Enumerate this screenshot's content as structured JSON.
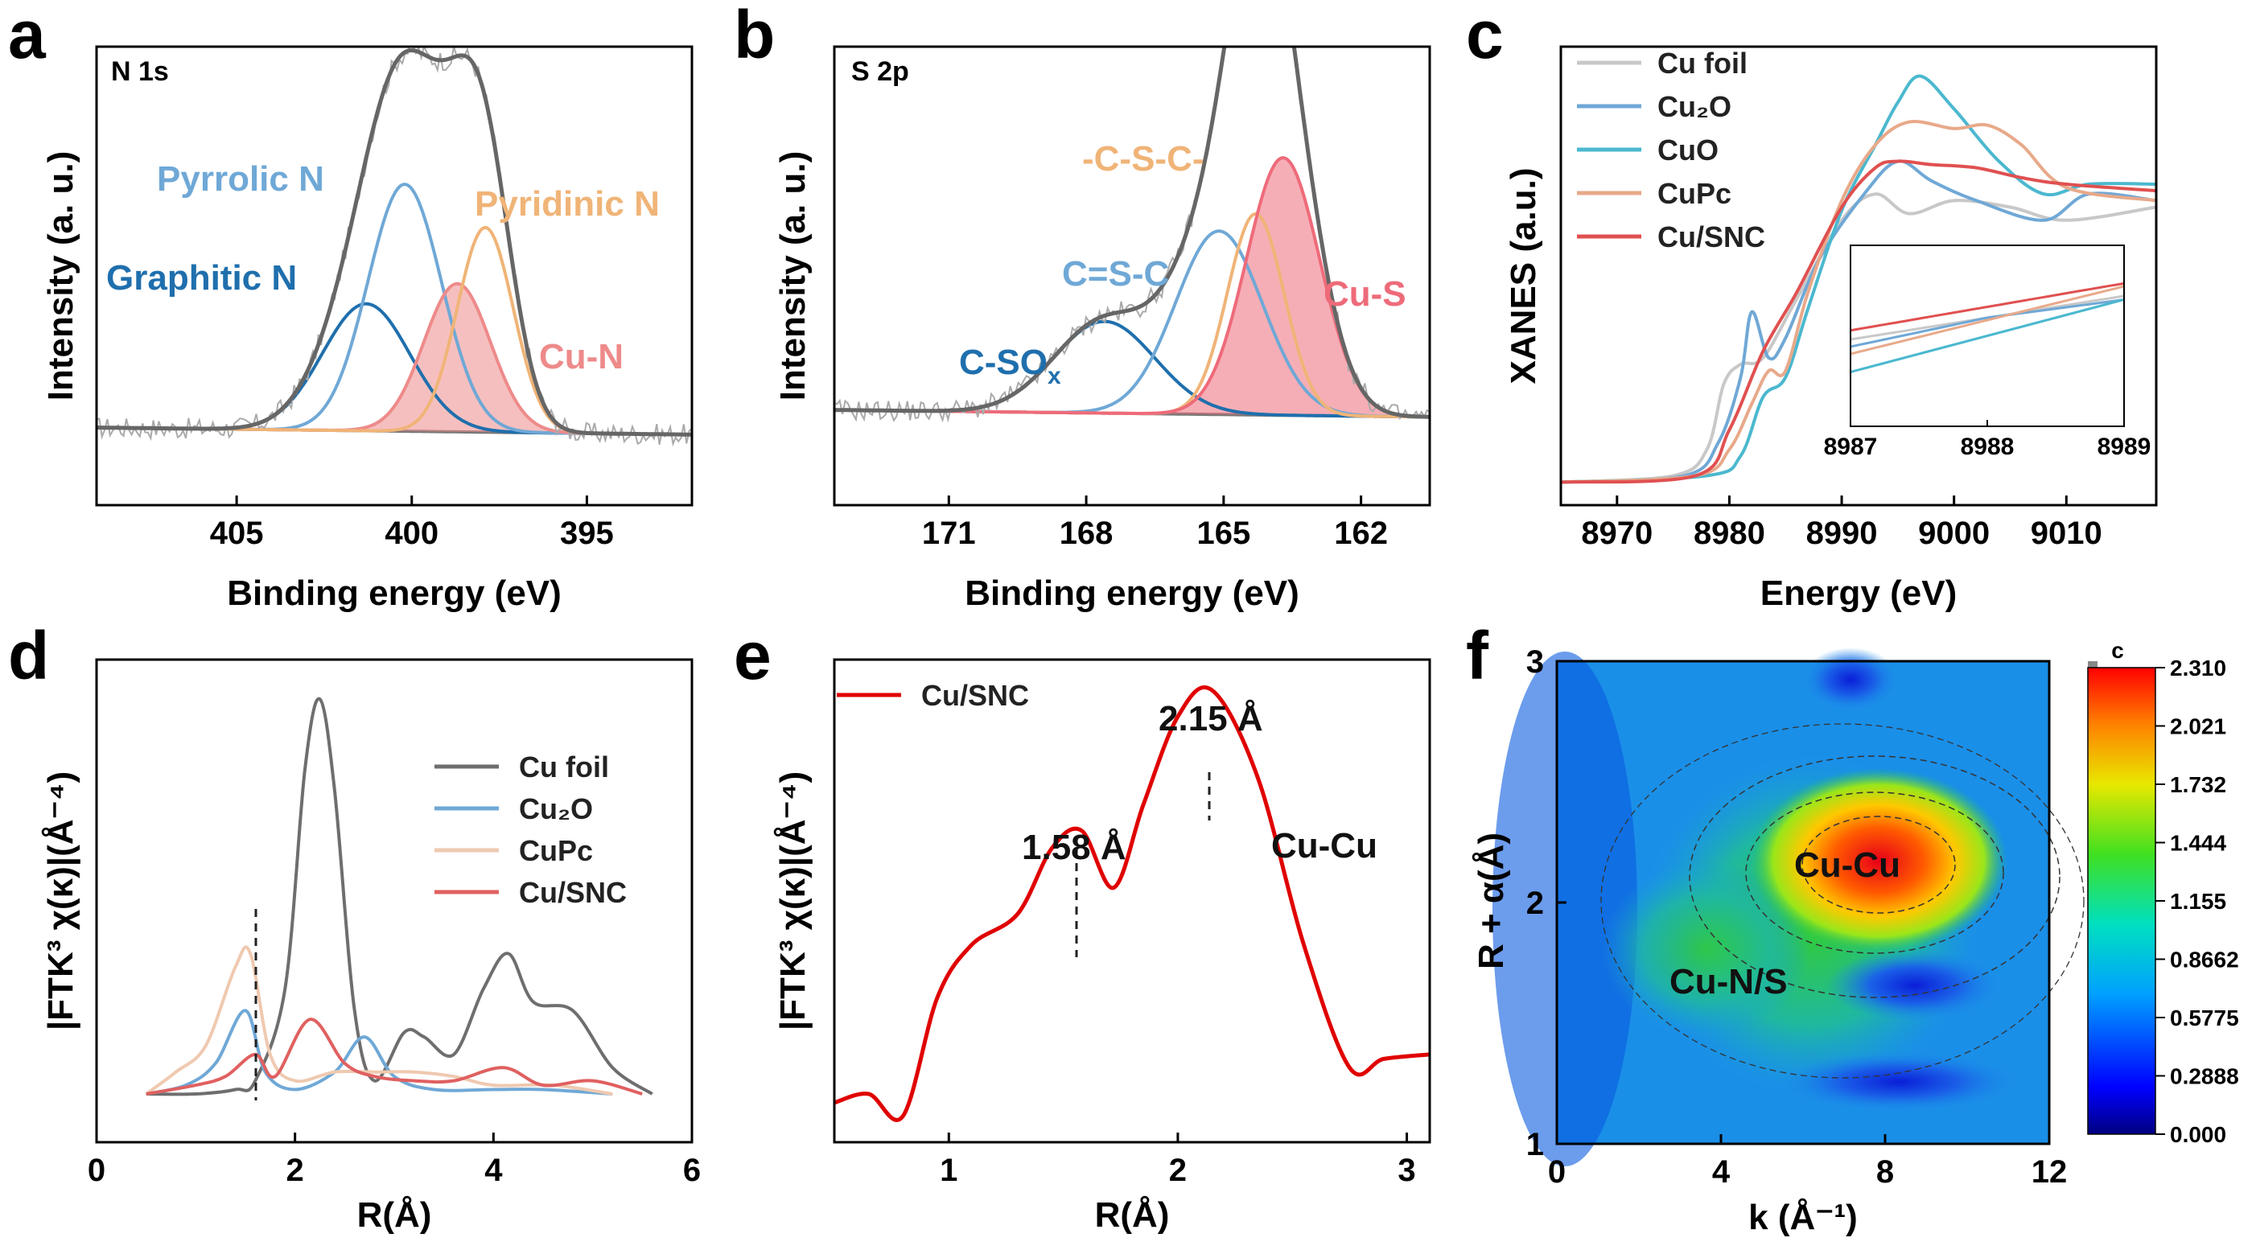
{
  "figure": {
    "panel_letters": [
      "a",
      "b",
      "c",
      "d",
      "e",
      "f"
    ]
  },
  "chart_data": [
    {
      "panel": "a",
      "type": "line",
      "subtitle": "N 1s",
      "xlabel": "Binding energy (eV)",
      "ylabel": "Intensity (a. u.)",
      "xlim": [
        409,
        392
      ],
      "ylim": [
        -0.2,
        1.1
      ],
      "xticks": [
        "405",
        "400",
        "395"
      ],
      "peaks": [
        {
          "name": "Graphitic N",
          "color": "#1f6fad",
          "center": 401.3,
          "height": 0.36,
          "width": 1.25
        },
        {
          "name": "Pyrrolic N",
          "color": "#6fa8d6",
          "center": 400.2,
          "height": 0.7,
          "width": 1.05
        },
        {
          "name": "Cu-N",
          "color": "#ee8a8a",
          "center": 398.7,
          "height": 0.42,
          "width": 0.95
        },
        {
          "name": "Pyridinic N",
          "color": "#f0b477",
          "center": 397.9,
          "height": 0.58,
          "width": 0.8
        }
      ],
      "labels": [
        "Pyrrolic N",
        "Pyridinic N",
        "Graphitic N",
        "Cu-N"
      ]
    },
    {
      "panel": "b",
      "type": "line",
      "subtitle": "S 2p",
      "xlabel": "Binding energy (eV)",
      "ylabel": "Intensity (a. u.)",
      "xlim": [
        173.5,
        160.5
      ],
      "ylim": [
        -0.25,
        1.05
      ],
      "xticks": [
        "171",
        "168",
        "165",
        "162"
      ],
      "peaks": [
        {
          "name": "C-SO_x",
          "color": "#1f6fad",
          "center": 167.6,
          "height": 0.26,
          "width": 1.1
        },
        {
          "name": "C=S-C",
          "color": "#6fa8d6",
          "center": 165.1,
          "height": 0.52,
          "width": 0.95
        },
        {
          "name": "-C-S-C-",
          "color": "#f0b477",
          "center": 164.3,
          "height": 0.57,
          "width": 0.62
        },
        {
          "name": "Cu-S",
          "color": "#ee6b7a",
          "center": 163.7,
          "height": 0.73,
          "width": 0.8
        }
      ],
      "labels": [
        "-C-S-C-",
        "C=S-C",
        "C-SO",
        "x",
        "Cu-S"
      ]
    },
    {
      "panel": "c",
      "type": "line",
      "xlabel": "Energy (eV)",
      "ylabel": "XANES (a.u.)",
      "xlim": [
        8965,
        9018
      ],
      "ylim": [
        -0.05,
        1.35
      ],
      "xticks": [
        "8970",
        "8980",
        "8990",
        "9000",
        "9010"
      ],
      "inset_xticks": [
        "8987",
        "8988",
        "8989"
      ],
      "series": [
        {
          "name": "Cu foil",
          "color": "#c8c8c8",
          "x": [
            8965,
            8975,
            8978,
            8979.5,
            8981,
            8983,
            8986,
            8990,
            8993,
            8996,
            9000,
            9005,
            9010,
            9018
          ],
          "y": [
            0.02,
            0.04,
            0.12,
            0.32,
            0.38,
            0.4,
            0.58,
            0.82,
            0.9,
            0.84,
            0.88,
            0.86,
            0.82,
            0.86
          ]
        },
        {
          "name": "Cu2O",
          "color": "#6fa8d6",
          "x": [
            8965,
            8976,
            8979,
            8981,
            8982,
            8983.5,
            8985,
            8988,
            8992,
            8995,
            8998,
            9002,
            9008,
            9012,
            9018
          ],
          "y": [
            0.02,
            0.04,
            0.14,
            0.34,
            0.54,
            0.4,
            0.46,
            0.7,
            0.9,
            1.0,
            0.94,
            0.88,
            0.82,
            0.9,
            0.88
          ]
        },
        {
          "name": "CuO",
          "color": "#4bb8cf",
          "x": [
            8965,
            8978,
            8981,
            8983,
            8985,
            8987,
            8990,
            8993,
            8995,
            8997,
            9000,
            9004,
            9008,
            9012,
            9018
          ],
          "y": [
            0.02,
            0.04,
            0.1,
            0.28,
            0.34,
            0.55,
            0.85,
            1.05,
            1.18,
            1.26,
            1.16,
            1.0,
            0.9,
            0.93,
            0.93
          ]
        },
        {
          "name": "CuPc",
          "color": "#e8a98a",
          "x": [
            8965,
            8977,
            8980,
            8982,
            8983.5,
            8985,
            8987,
            8990,
            8993,
            8996,
            9000,
            9003,
            9006,
            9010,
            9018
          ],
          "y": [
            0.02,
            0.04,
            0.12,
            0.26,
            0.36,
            0.36,
            0.6,
            0.88,
            1.05,
            1.12,
            1.1,
            1.11,
            1.05,
            0.92,
            0.88
          ]
        },
        {
          "name": "Cu/SNC",
          "color": "#e05050",
          "x": [
            8965,
            8977,
            8980,
            8983,
            8986,
            8990,
            8993,
            8995,
            8998,
            9002,
            9006,
            9010,
            9018
          ],
          "y": [
            0.02,
            0.04,
            0.18,
            0.42,
            0.6,
            0.86,
            0.98,
            1.0,
            0.99,
            0.98,
            0.95,
            0.93,
            0.91
          ]
        }
      ]
    },
    {
      "panel": "d",
      "type": "line",
      "xlabel": "R(Å)",
      "ylabel": "|FTK³ χ(κ)|(Å⁻⁴)",
      "xlim": [
        0,
        6
      ],
      "ylim": [
        -0.1,
        1.0
      ],
      "xticks": [
        "0",
        "2",
        "4",
        "6"
      ],
      "series": [
        {
          "name": "Cu foil",
          "color": "#6e6e6e",
          "x": [
            0.5,
            1.0,
            1.4,
            1.6,
            1.9,
            2.1,
            2.25,
            2.4,
            2.6,
            2.8,
            3.1,
            3.3,
            3.6,
            3.9,
            4.15,
            4.4,
            4.8,
            5.2,
            5.6
          ],
          "y": [
            0.01,
            0.01,
            0.02,
            0.04,
            0.25,
            0.75,
            0.91,
            0.7,
            0.2,
            0.04,
            0.15,
            0.14,
            0.1,
            0.25,
            0.33,
            0.22,
            0.2,
            0.07,
            0.01
          ]
        },
        {
          "name": "Cu2O",
          "color": "#6fa8d6",
          "x": [
            0.5,
            0.9,
            1.2,
            1.5,
            1.7,
            2.0,
            2.4,
            2.7,
            3.0,
            3.4,
            4.0,
            4.5,
            5.2
          ],
          "y": [
            0.01,
            0.03,
            0.08,
            0.2,
            0.06,
            0.02,
            0.06,
            0.14,
            0.05,
            0.02,
            0.02,
            0.02,
            0.01
          ]
        },
        {
          "name": "CuPc",
          "color": "#efc9b0",
          "x": [
            0.5,
            0.8,
            1.1,
            1.4,
            1.55,
            1.75,
            2.0,
            2.4,
            2.8,
            3.2,
            3.6,
            4.0,
            4.6,
            5.2
          ],
          "y": [
            0.01,
            0.06,
            0.12,
            0.3,
            0.33,
            0.1,
            0.04,
            0.06,
            0.06,
            0.06,
            0.05,
            0.03,
            0.03,
            0.01
          ]
        },
        {
          "name": "Cu/SNC",
          "color": "#e06060",
          "x": [
            0.5,
            1.0,
            1.3,
            1.6,
            1.8,
            2.15,
            2.5,
            2.8,
            3.2,
            3.6,
            4.1,
            4.5,
            5.0,
            5.5
          ],
          "y": [
            0.01,
            0.03,
            0.05,
            0.1,
            0.05,
            0.18,
            0.08,
            0.05,
            0.04,
            0.04,
            0.07,
            0.03,
            0.04,
            0.01
          ]
        }
      ]
    },
    {
      "panel": "e",
      "type": "line",
      "xlabel": "R(Å)",
      "ylabel": "|FTK³ χ(κ)|(Å⁻⁴)",
      "xlim": [
        0.5,
        3.1
      ],
      "ylim": [
        -0.05,
        1.05
      ],
      "xticks": [
        "1",
        "2",
        "3"
      ],
      "series": [
        {
          "name": "Cu/SNC",
          "color": "#e00000",
          "x": [
            0.5,
            0.65,
            0.8,
            0.95,
            1.1,
            1.3,
            1.45,
            1.58,
            1.72,
            1.85,
            2.0,
            2.15,
            2.35,
            2.55,
            2.75,
            2.9,
            3.1
          ],
          "y": [
            0.04,
            0.06,
            0.01,
            0.28,
            0.4,
            0.47,
            0.62,
            0.66,
            0.53,
            0.72,
            0.92,
            0.98,
            0.78,
            0.4,
            0.12,
            0.14,
            0.15
          ]
        }
      ],
      "annotations": [
        "2.15 Å",
        "1.58 Å",
        "Cu-Cu"
      ]
    },
    {
      "panel": "f",
      "type": "heatmap",
      "xlabel": "k (Å⁻¹)",
      "ylabel": "R + α(Å)",
      "xlim": [
        0,
        12
      ],
      "ylim": [
        1,
        3
      ],
      "xticks": [
        "0",
        "4",
        "8",
        "12"
      ],
      "yticks": [
        "1",
        "2",
        "3"
      ],
      "colorbar_title": "c",
      "colorbar_ticks": [
        "2.310",
        "2.021",
        "1.732",
        "1.444",
        "1.155",
        "0.8662",
        "0.5775",
        "0.2888",
        "0.000"
      ],
      "labels": [
        "Cu-Cu",
        "Cu-N/S"
      ]
    }
  ]
}
